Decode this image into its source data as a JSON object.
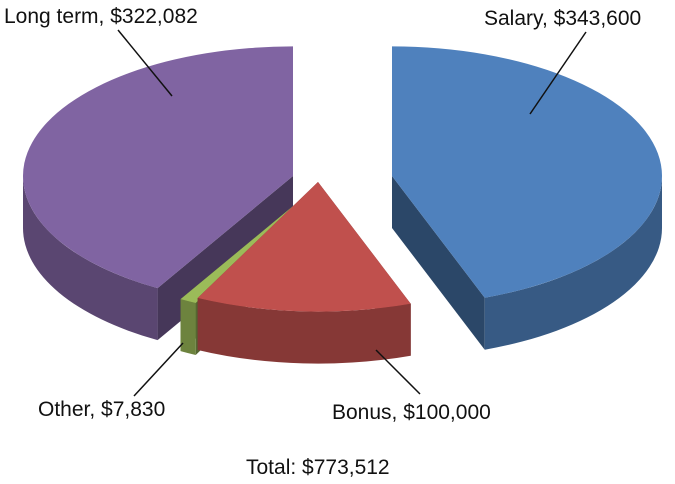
{
  "chart_data": {
    "type": "pie",
    "title": "",
    "slices": [
      {
        "name": "Salary",
        "value": 343600,
        "label": "Salary, $343,600",
        "color": "#4F81BD"
      },
      {
        "name": "Bonus",
        "value": 100000,
        "label": "Bonus, $100,000",
        "color": "#C0504D"
      },
      {
        "name": "Other",
        "value": 7830,
        "label": "Other, $7,830",
        "color": "#9BBB59"
      },
      {
        "name": "Long term",
        "value": 322082,
        "label": "Long term, $322,082",
        "color": "#8064A2"
      }
    ],
    "total_label": "Total: $773,512",
    "exploded": true,
    "three_d": true,
    "legend": "none"
  }
}
